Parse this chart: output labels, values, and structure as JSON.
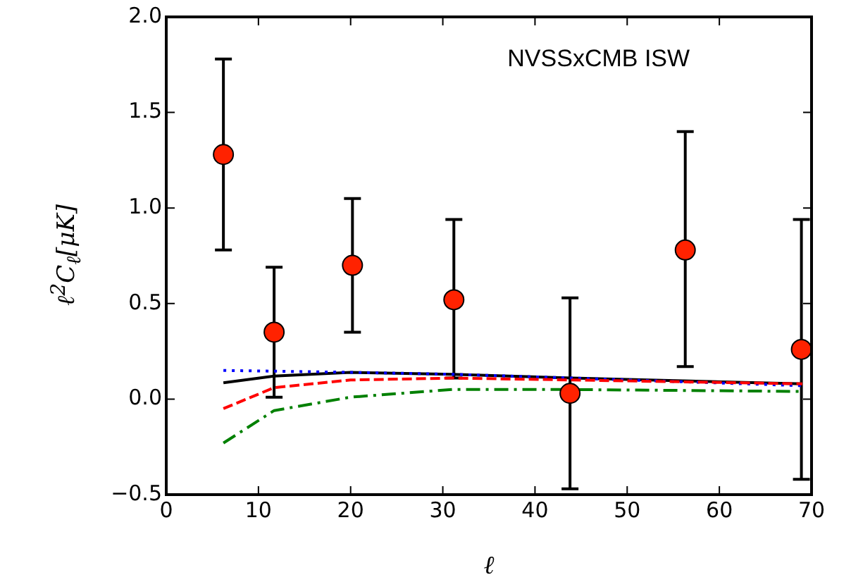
{
  "chart_data": {
    "type": "scatter",
    "xlabel": "ℓ",
    "ylabel": "ℓ$^{2}$C$_{ℓ}$[μK]",
    "annotations": [
      "NVSSxCMB ISW"
    ],
    "xlim": [
      0,
      70
    ],
    "xticks": [
      0,
      10,
      20,
      30,
      40,
      50,
      60,
      70
    ],
    "ylim": [
      -0.5,
      2.0
    ],
    "yticks": [
      {
        "value": -0.5,
        "label": "−0.5"
      },
      {
        "value": 0,
        "label": "0.0"
      },
      {
        "value": 0.5,
        "label": "0.5"
      },
      {
        "value": 1,
        "label": "1.0"
      },
      {
        "value": 1.5,
        "label": "1.5"
      },
      {
        "value": 2,
        "label": "2.0"
      }
    ],
    "grid": false,
    "legend": false,
    "series": [
      {
        "type": "line",
        "color": "#000000",
        "line_style": "solid",
        "marker": "none",
        "x": [
          6.2,
          11.7,
          20,
          31,
          44,
          69
        ],
        "values": [
          0.085,
          0.12,
          0.14,
          0.13,
          0.11,
          0.08
        ]
      },
      {
        "type": "line",
        "color": "#0000ff",
        "line_style": "dotted",
        "marker": "none",
        "x": [
          6.2,
          20,
          31,
          44,
          69
        ],
        "values": [
          0.15,
          0.14,
          0.13,
          0.11,
          0.07
        ]
      },
      {
        "type": "line",
        "color": "#ff0000",
        "line_style": "dashed",
        "marker": "none",
        "x": [
          6.2,
          11.7,
          20,
          31,
          44,
          69
        ],
        "values": [
          -0.05,
          0.06,
          0.1,
          0.11,
          0.1,
          0.08
        ]
      },
      {
        "type": "line",
        "color": "#008000",
        "line_style": "dashdot",
        "marker": "none",
        "x": [
          6.2,
          11.7,
          20,
          31,
          44,
          69
        ],
        "values": [
          -0.23,
          -0.06,
          0.01,
          0.05,
          0.05,
          0.04
        ]
      },
      {
        "type": "scatter",
        "color": "#ff2200",
        "marker": "circle",
        "x": [
          6.2,
          11.7,
          20.2,
          31.2,
          43.8,
          56.3,
          68.9
        ],
        "values": [
          1.28,
          0.35,
          0.7,
          0.52,
          0.03,
          0.78,
          0.26
        ],
        "errors": [
          [
            0.78,
            1.78
          ],
          [
            0.01,
            0.69
          ],
          [
            0.35,
            1.05
          ],
          [
            0.11,
            0.94
          ],
          [
            -0.47,
            0.53
          ],
          [
            0.17,
            1.4
          ],
          [
            -0.42,
            0.94
          ]
        ]
      }
    ]
  }
}
